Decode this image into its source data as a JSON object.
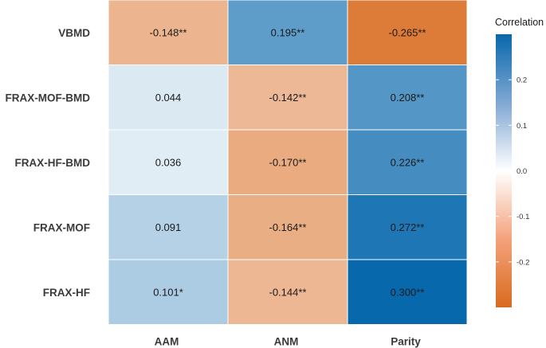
{
  "chart_data": {
    "type": "heatmap",
    "rows": [
      "VBMD",
      "FRAX-MOF-BMD",
      "FRAX-HF-BMD",
      "FRAX-MOF",
      "FRAX-HF"
    ],
    "columns": [
      "AAM",
      "ANM",
      "Parity"
    ],
    "values": [
      [
        -0.148,
        0.195,
        -0.265
      ],
      [
        0.044,
        -0.142,
        0.208
      ],
      [
        0.036,
        -0.17,
        0.226
      ],
      [
        0.091,
        -0.164,
        0.272
      ],
      [
        0.101,
        -0.144,
        0.3
      ]
    ],
    "labels": [
      [
        "-0.148**",
        "0.195**",
        "-0.265**"
      ],
      [
        "0.044",
        "-0.142**",
        "0.208**"
      ],
      [
        "0.036",
        "-0.170**",
        "0.226**"
      ],
      [
        "0.091",
        "-0.164**",
        "0.272**"
      ],
      [
        "0.101*",
        "-0.144**",
        "0.300**"
      ]
    ],
    "legend": {
      "title": "Correlation",
      "ticks": [
        "0.2",
        "0.1",
        "0.0",
        "-0.1",
        "-0.2"
      ],
      "range": [
        -0.3,
        0.3
      ],
      "placement": "right"
    },
    "colors": {
      "positive": "#0868ac",
      "neutral": "#ffffff",
      "negative": "#d96a1e"
    }
  }
}
